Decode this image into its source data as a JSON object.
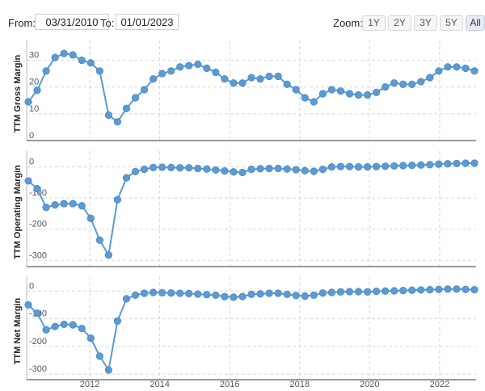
{
  "toolbar": {
    "from_label": "From:",
    "from_value": "03/31/2010",
    "to_label": "To:",
    "to_value": "01/01/2023",
    "zoom_label": "Zoom:",
    "zoom_buttons": [
      "1Y",
      "2Y",
      "3Y",
      "5Y",
      "All"
    ],
    "zoom_active": "All"
  },
  "colors": {
    "line": "#5b9bd5",
    "point": "#5b9bd5",
    "grid": "#d9d9d9",
    "axis": "#333333"
  },
  "chart_data": [
    {
      "type": "line",
      "ylabel": "TTM Gross Margin",
      "ylim": [
        0,
        35
      ],
      "yticks": [
        0,
        10,
        20,
        30
      ],
      "series": [
        {
          "values": [
            14.5,
            18.8,
            26,
            31,
            32.5,
            32,
            30,
            29,
            26,
            9.5,
            7,
            12,
            16,
            19,
            23,
            25,
            26,
            27.5,
            28,
            28.5,
            27,
            25.5,
            23,
            21.5,
            21.5,
            23.5,
            23,
            24,
            24,
            21,
            19,
            16,
            14.5,
            17.5,
            19,
            18.5,
            17.5,
            17,
            17,
            18,
            20,
            21.5,
            21,
            21,
            22,
            23.5,
            26,
            27.5,
            27.5,
            27,
            26
          ]
        }
      ]
    },
    {
      "type": "line",
      "ylabel": "TTM Operating Margin",
      "ylim": [
        -320,
        30
      ],
      "yticks": [
        0,
        -100,
        -200,
        -300
      ],
      "series": [
        {
          "values": [
            -45,
            -70,
            -130,
            -122,
            -118,
            -118,
            -125,
            -165,
            -235,
            -283,
            -105,
            -35,
            -15,
            -8,
            -2,
            -1,
            -2,
            -3,
            -3,
            -5,
            -7,
            -10,
            -13,
            -16,
            -18,
            -8,
            -6,
            -5,
            -5,
            -7,
            -9,
            -12,
            -14,
            -8,
            0,
            1,
            1,
            0,
            0,
            1,
            2,
            3,
            4,
            5,
            6,
            7,
            9,
            10,
            11,
            12,
            12
          ]
        }
      ]
    },
    {
      "type": "line",
      "ylabel": "TTM Net Margin",
      "ylim": [
        -320,
        30
      ],
      "yticks": [
        0,
        -100,
        -200,
        -300
      ],
      "series": [
        {
          "values": [
            -50,
            -80,
            -140,
            -128,
            -120,
            -122,
            -135,
            -170,
            -235,
            -285,
            -108,
            -28,
            -15,
            -8,
            -5,
            -6,
            -7,
            -8,
            -9,
            -11,
            -13,
            -15,
            -20,
            -22,
            -20,
            -12,
            -10,
            -8,
            -8,
            -12,
            -16,
            -18,
            -15,
            -7,
            -5,
            -3,
            -2,
            -2,
            -3,
            -1,
            0,
            1,
            2,
            3,
            4,
            5,
            6,
            7,
            7,
            6,
            5
          ]
        }
      ]
    }
  ],
  "x_axis": {
    "start": "2010-03-31",
    "end": "2022-12-31",
    "ticks": [
      {
        "label": "2012",
        "date": "2012-01-01"
      },
      {
        "label": "2014",
        "date": "2014-01-01"
      },
      {
        "label": "2016",
        "date": "2016-01-01"
      },
      {
        "label": "2018",
        "date": "2018-01-01"
      },
      {
        "label": "2020",
        "date": "2020-01-01"
      },
      {
        "label": "2022",
        "date": "2022-01-01"
      }
    ]
  }
}
